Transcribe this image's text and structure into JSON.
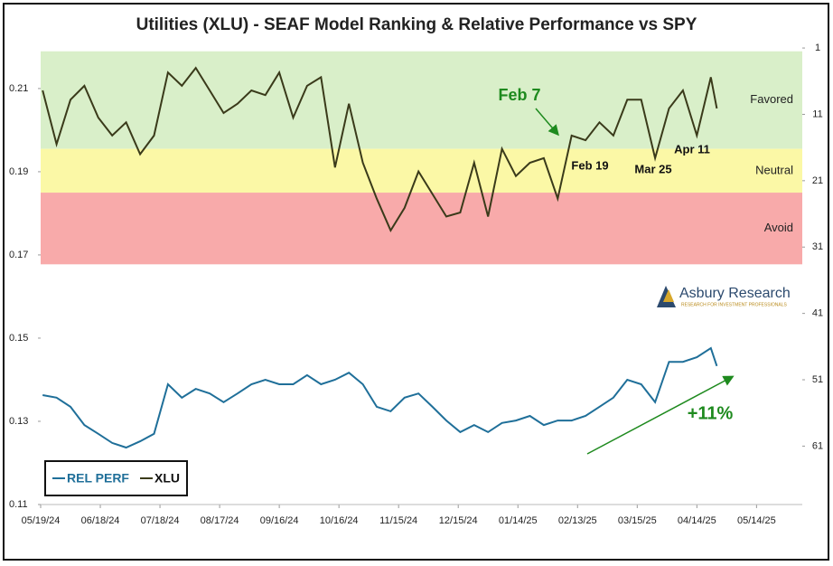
{
  "chart_data": {
    "type": "line",
    "title": "Utilities (XLU) - SEAF Model Ranking & Relative Performance vs SPY",
    "x": [
      "05/20/24",
      "05/27/24",
      "06/03/24",
      "06/10/24",
      "06/17/24",
      "06/24/24",
      "07/01/24",
      "07/08/24",
      "07/15/24",
      "07/22/24",
      "07/29/24",
      "08/05/24",
      "08/12/24",
      "08/19/24",
      "08/26/24",
      "09/02/24",
      "09/09/24",
      "09/16/24",
      "09/23/24",
      "09/30/24",
      "10/07/24",
      "10/14/24",
      "10/21/24",
      "10/28/24",
      "11/04/24",
      "11/11/24",
      "11/18/24",
      "11/25/24",
      "12/02/24",
      "12/09/24",
      "12/16/24",
      "12/23/24",
      "12/30/24",
      "01/06/25",
      "01/13/25",
      "01/20/25",
      "01/27/25",
      "02/03/25",
      "02/10/25",
      "02/17/25",
      "02/24/25",
      "03/03/25",
      "03/10/25",
      "03/17/25",
      "03/24/25",
      "03/31/25",
      "04/07/25",
      "04/14/25",
      "04/21/25",
      "04/24/25"
    ],
    "series": [
      {
        "name": "REL PERF",
        "color": "#1f6f99",
        "axis": "y",
        "values": [
          0.1363,
          0.1357,
          0.1335,
          0.1291,
          0.127,
          0.1248,
          0.1237,
          0.1252,
          0.127,
          0.1389,
          0.1357,
          0.1378,
          0.1367,
          0.1346,
          0.1367,
          0.1389,
          0.14,
          0.1389,
          0.1389,
          0.1411,
          0.1389,
          0.14,
          0.1417,
          0.1389,
          0.1335,
          0.1324,
          0.1357,
          0.1367,
          0.1335,
          0.1302,
          0.1274,
          0.1291,
          0.1274,
          0.1296,
          0.1302,
          0.1313,
          0.1291,
          0.1302,
          0.1302,
          0.1313,
          0.1335,
          0.1357,
          0.14,
          0.1389,
          0.1346,
          0.1443,
          0.1443,
          0.1454,
          0.1476,
          0.1433
        ]
      },
      {
        "name": "XLU",
        "color": "#3a3a1a",
        "axis": "y2",
        "values": [
          7.4,
          15.5,
          8.8,
          6.7,
          11.5,
          14.2,
          12.2,
          17,
          14.2,
          4.7,
          6.7,
          4,
          7.4,
          10.8,
          9.4,
          7.4,
          8.1,
          4.7,
          11.5,
          6.7,
          5.4,
          19,
          9.4,
          18.3,
          23.7,
          28.5,
          25.1,
          19.6,
          23,
          26.4,
          25.8,
          18.3,
          26.4,
          16.2,
          20.3,
          18.3,
          17.6,
          23.7,
          14.2,
          14.9,
          12.2,
          14.2,
          8.8,
          8.8,
          17.6,
          10.1,
          7.4,
          14.2,
          5.4,
          10.1
        ]
      }
    ],
    "xlim": [
      "05/19/24",
      "06/06/25"
    ],
    "xticks": [
      "05/19/24",
      "06/18/24",
      "07/18/24",
      "08/17/24",
      "09/16/24",
      "10/16/24",
      "11/15/24",
      "12/15/24",
      "01/14/25",
      "02/13/25",
      "03/15/25",
      "04/14/25",
      "05/14/25"
    ],
    "ylim": [
      0.11,
      0.2215
    ],
    "yticks": [
      0.11,
      0.13,
      0.15,
      0.17,
      0.19,
      0.21
    ],
    "y2lim": [
      69.8,
      -0.1
    ],
    "y2ticks": [
      1,
      11,
      21,
      31,
      41,
      51,
      61
    ],
    "zones": [
      {
        "label": "Favored",
        "from": 1.5,
        "to": 16.2,
        "color": "#d9efc9"
      },
      {
        "label": "Neutral",
        "from": 16.2,
        "to": 22.8,
        "color": "#fbf8a6"
      },
      {
        "label": "Avoid",
        "from": 22.8,
        "to": 33.6,
        "color": "#f8aaaa"
      }
    ],
    "annotations": [
      {
        "text": "Feb 7",
        "color": "#1e8a1e"
      },
      {
        "text": "Feb 19",
        "color": "#111111"
      },
      {
        "text": "Mar 25",
        "color": "#111111"
      },
      {
        "text": "Apr 11",
        "color": "#111111"
      },
      {
        "text": "+11%",
        "color": "#1e8a1e"
      }
    ],
    "logo": {
      "name": "Asbury Research",
      "tagline": "RESEARCH FOR INVESTMENT PROFESSIONALS"
    },
    "legend": "lower left"
  }
}
